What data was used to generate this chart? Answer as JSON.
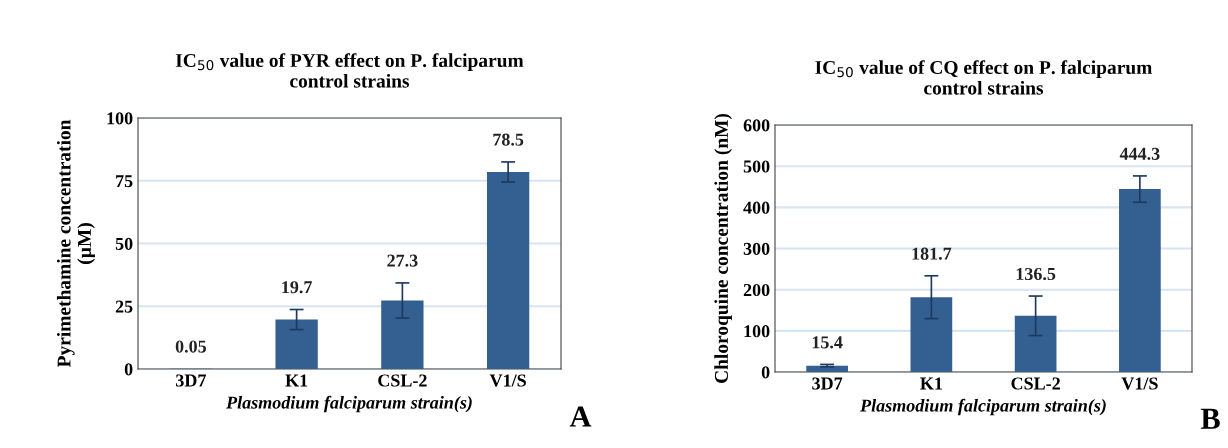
{
  "chart_data": [
    {
      "type": "bar",
      "title": "IC$_{50}$ value of PYR effect on P. falciparum\ncontrol strains",
      "xlabel": "Plasmodium falciparum strain(s)",
      "ylabel": "Pyrimethamine concentration\n(µM)",
      "categories": [
        "3D7",
        "K1",
        "CSL-2",
        "V1/S"
      ],
      "values": [
        0.05,
        19.7,
        27.3,
        78.5
      ],
      "errors": [
        null,
        4,
        7,
        4
      ],
      "color": "#335f91",
      "ylim": [
        0,
        100
      ],
      "yticks": [
        0,
        25,
        50,
        75,
        100
      ],
      "grid": "y",
      "data_labels": true,
      "annotations": [
        "A"
      ]
    },
    {
      "type": "bar",
      "title": "IC$_{50}$ value of CQ effect on P. falciparum\ncontrol strains",
      "xlabel": "Plasmodium falciparum strain(s)",
      "ylabel": "Chloroquine concentration (nM)",
      "categories": [
        "3D7",
        "K1",
        "CSL-2",
        "V1/S"
      ],
      "values": [
        15.4,
        181.7,
        136.5,
        444.3
      ],
      "errors": [
        3,
        52,
        48,
        32
      ],
      "color": "#335f91",
      "ylim": [
        0,
        600
      ],
      "yticks": [
        0,
        100,
        200,
        300,
        400,
        500,
        600
      ],
      "grid": "y",
      "data_labels": true,
      "annotations": [
        "B"
      ]
    }
  ]
}
